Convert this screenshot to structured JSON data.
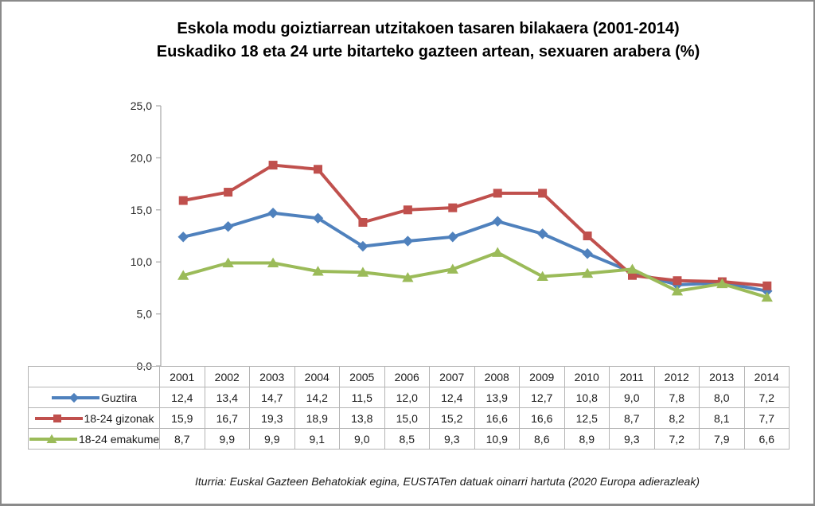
{
  "title": {
    "line1": "Eskola modu goiztiarrean utzitakoen tasaren bilakaera (2001-2014)",
    "line2": "Euskadiko 18 eta 24 urte bitarteko gazteen artean, sexuaren arabera (%)"
  },
  "footer": "Iturria: Euskal Gazteen Behatokiak egina, EUSTATen datuak oinarri hartuta (2020  Europa adierazleak)",
  "colors": {
    "axis": "#a6a6a6",
    "table_border": "#b4b4b4",
    "series_blue": "#4F81BD",
    "series_red": "#C0504D",
    "series_green": "#9BBB59"
  },
  "chart_data": {
    "type": "line",
    "categories": [
      "2001",
      "2002",
      "2003",
      "2004",
      "2005",
      "2006",
      "2007",
      "2008",
      "2009",
      "2010",
      "2011",
      "2012",
      "2013",
      "2014"
    ],
    "series": [
      {
        "name": "Guztira",
        "marker": "diamond",
        "color": "#4F81BD",
        "values": [
          12.4,
          13.4,
          14.7,
          14.2,
          11.5,
          12.0,
          12.4,
          13.9,
          12.7,
          10.8,
          9.0,
          7.8,
          8.0,
          7.2
        ]
      },
      {
        "name": "18-24 gizonak",
        "marker": "square",
        "color": "#C0504D",
        "values": [
          15.9,
          16.7,
          19.3,
          18.9,
          13.8,
          15.0,
          15.2,
          16.6,
          16.6,
          12.5,
          8.7,
          8.2,
          8.1,
          7.7
        ]
      },
      {
        "name": "18-24 emakumeak",
        "marker": "triangle",
        "color": "#9BBB59",
        "values": [
          8.7,
          9.9,
          9.9,
          9.1,
          9.0,
          8.5,
          9.3,
          10.9,
          8.6,
          8.9,
          9.3,
          7.2,
          7.9,
          6.6
        ]
      }
    ],
    "ylim": [
      0,
      25
    ],
    "y_ticks": [
      "0,0",
      "5,0",
      "10,0",
      "15,0",
      "20,0",
      "25,0"
    ],
    "decimal_separator": ",",
    "grid": false,
    "legend_position": "table-left",
    "xlabel": "",
    "ylabel": ""
  }
}
